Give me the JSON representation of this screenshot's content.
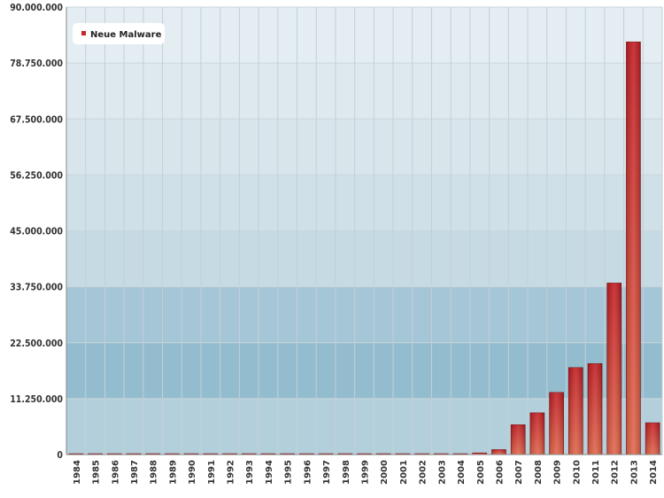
{
  "chart_data": {
    "type": "bar",
    "title": "",
    "xlabel": "",
    "ylabel": "",
    "ylim": [
      0,
      90000000
    ],
    "yticks": [
      0,
      11250000,
      22500000,
      33750000,
      45000000,
      56250000,
      67500000,
      78750000,
      90000000
    ],
    "ytick_labels": [
      "0",
      "11.250.000",
      "22.500.000",
      "33.750.000",
      "45.000.000",
      "56.250.000",
      "67.500.000",
      "78.750.000",
      "90.000.000"
    ],
    "categories": [
      "1984",
      "1985",
      "1986",
      "1987",
      "1988",
      "1989",
      "1990",
      "1991",
      "1992",
      "1993",
      "1994",
      "1995",
      "1996",
      "1997",
      "1998",
      "1999",
      "2000",
      "2001",
      "2002",
      "2003",
      "2004",
      "2005",
      "2006",
      "2007",
      "2008",
      "2009",
      "2010",
      "2011",
      "2012",
      "2013",
      "2014"
    ],
    "series": [
      {
        "name": "Neue Malware",
        "color": "#c8242a",
        "values": [
          1,
          2,
          4,
          8,
          12,
          20,
          40,
          80,
          120,
          200,
          300,
          400,
          600,
          900,
          1200,
          1500,
          2000,
          3000,
          5000,
          8000,
          12000,
          333000,
          1000000,
          6000000,
          8400000,
          12500000,
          17500000,
          18300000,
          34500000,
          83000000,
          6400000
        ]
      }
    ],
    "legend": {
      "position": "top-left"
    },
    "grid": true,
    "background": "#a9c9d8",
    "band_colors": [
      "#7fb0c4",
      "#dfe9ef"
    ]
  }
}
